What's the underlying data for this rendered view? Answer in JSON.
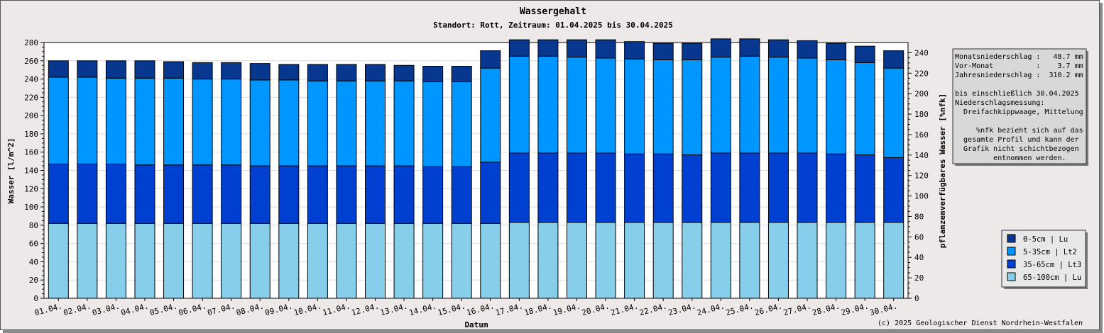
{
  "chart_data": {
    "type": "bar",
    "stacked": true,
    "title": "Wassergehalt",
    "subtitle": "Standort: Rott, Zeitraum: 01.04.2025 bis 30.04.2025",
    "xlabel": "Datum",
    "ylabel": "Wasser [l/m^2]",
    "y2label": "pflanzenverfügbares Wasser [%nfk]",
    "ylim": [
      0,
      280
    ],
    "y2lim": [
      0,
      250
    ],
    "yticks": [
      0,
      20,
      40,
      60,
      80,
      100,
      120,
      140,
      160,
      180,
      200,
      220,
      240,
      260,
      280
    ],
    "y2ticks": [
      0,
      20,
      40,
      60,
      80,
      100,
      120,
      140,
      160,
      180,
      200,
      220,
      240
    ],
    "grid": true,
    "categories": [
      "01.04.",
      "02.04.",
      "03.04.",
      "04.04.",
      "05.04.",
      "06.04.",
      "07.04.",
      "08.04.",
      "09.04.",
      "10.04.",
      "11.04.",
      "12.04.",
      "13.04.",
      "14.04.",
      "15.04.",
      "16.04.",
      "17.04.",
      "18.04.",
      "19.04.",
      "20.04.",
      "21.04.",
      "22.04.",
      "23.04.",
      "24.04.",
      "25.04.",
      "26.04.",
      "27.04.",
      "28.04.",
      "29.04.",
      "30.04."
    ],
    "series": [
      {
        "name": "65-100cm | Lu",
        "color": "#87ceeb",
        "values": [
          82,
          82,
          82,
          82,
          82,
          82,
          82,
          82,
          82,
          82,
          82,
          82,
          82,
          82,
          82,
          82,
          83,
          83,
          83,
          83,
          83,
          83,
          83,
          83,
          83,
          83,
          83,
          83,
          83,
          83
        ]
      },
      {
        "name": "35-65cm | Lt3",
        "color": "#0040d0",
        "values": [
          65,
          65,
          65,
          64,
          64,
          64,
          64,
          63,
          63,
          63,
          63,
          63,
          63,
          62,
          62,
          67,
          76,
          76,
          76,
          76,
          75,
          75,
          74,
          76,
          76,
          76,
          76,
          75,
          74,
          71
        ]
      },
      {
        "name": "5-35cm | Lt2",
        "color": "#0096ff",
        "values": [
          95,
          95,
          94,
          95,
          95,
          94,
          94,
          94,
          94,
          93,
          93,
          93,
          93,
          93,
          93,
          103,
          106,
          106,
          105,
          104,
          104,
          103,
          104,
          105,
          106,
          105,
          104,
          103,
          101,
          98
        ]
      },
      {
        "name": "0-5cm | Lu",
        "color": "#08378f",
        "values": [
          18,
          18,
          19,
          19,
          18,
          18,
          18,
          18,
          17,
          18,
          18,
          18,
          17,
          17,
          17,
          19,
          18,
          18,
          19,
          20,
          19,
          18,
          18,
          20,
          19,
          19,
          19,
          18,
          18,
          19
        ]
      }
    ],
    "legend_position": "right-bottom",
    "info_box": [
      "Monatsniederschlag :   48.7 mm",
      "Vor-Monat          :    3.7 mm",
      "Jahresniederschlag :  310.2 mm",
      "",
      "bis einschließlich 30.04.2025",
      "Niederschlagsmessung:",
      "  Dreifachkippwaage, Mittelung",
      "",
      "     %nfk bezieht sich auf das",
      "  gesamte Profil und kann der",
      "  Grafik nicht schichtbezogen",
      "         entnommen werden."
    ],
    "copyright": "(c) 2025 Geologischer Dienst Nordrhein-Westfalen"
  }
}
